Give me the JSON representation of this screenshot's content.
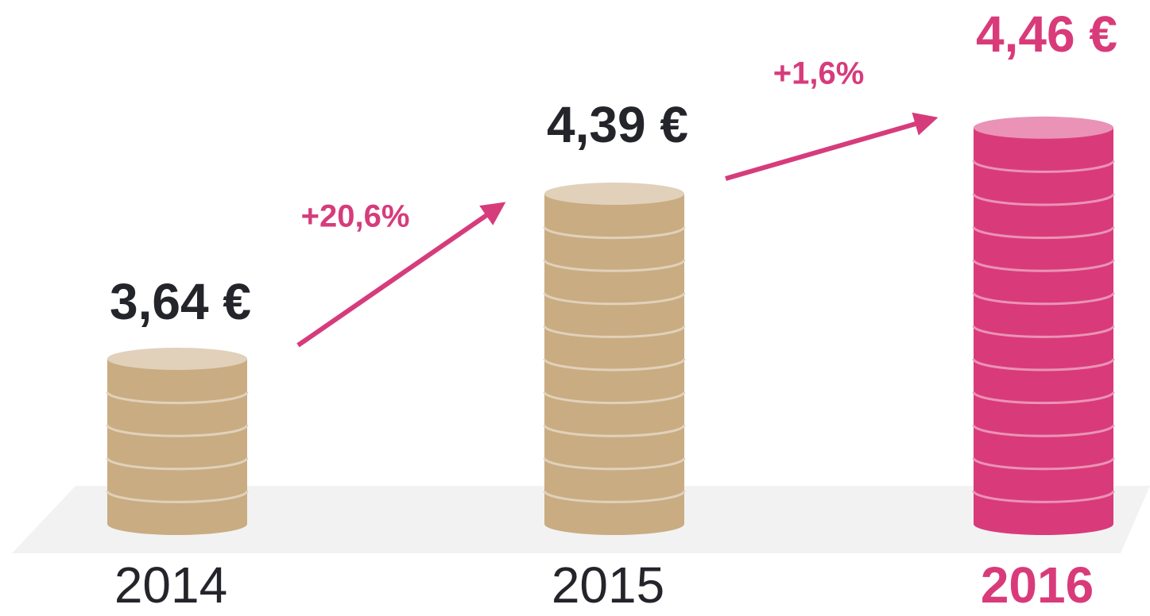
{
  "chart_data": {
    "type": "coin-stack",
    "categories": [
      "2014",
      "2015",
      "2016"
    ],
    "values": [
      3.64,
      4.39,
      4.46
    ],
    "value_labels": [
      "3,64 €",
      "4,39 €",
      "4,46 €"
    ],
    "colors": [
      "#c9ac82",
      "#c9ac82",
      "#d93b7a"
    ],
    "changes": [
      {
        "value": 20.6,
        "label": "+20,6%"
      },
      {
        "value": 1.6,
        "label": "+1,6%"
      }
    ],
    "change_color": "#d63c7c"
  }
}
